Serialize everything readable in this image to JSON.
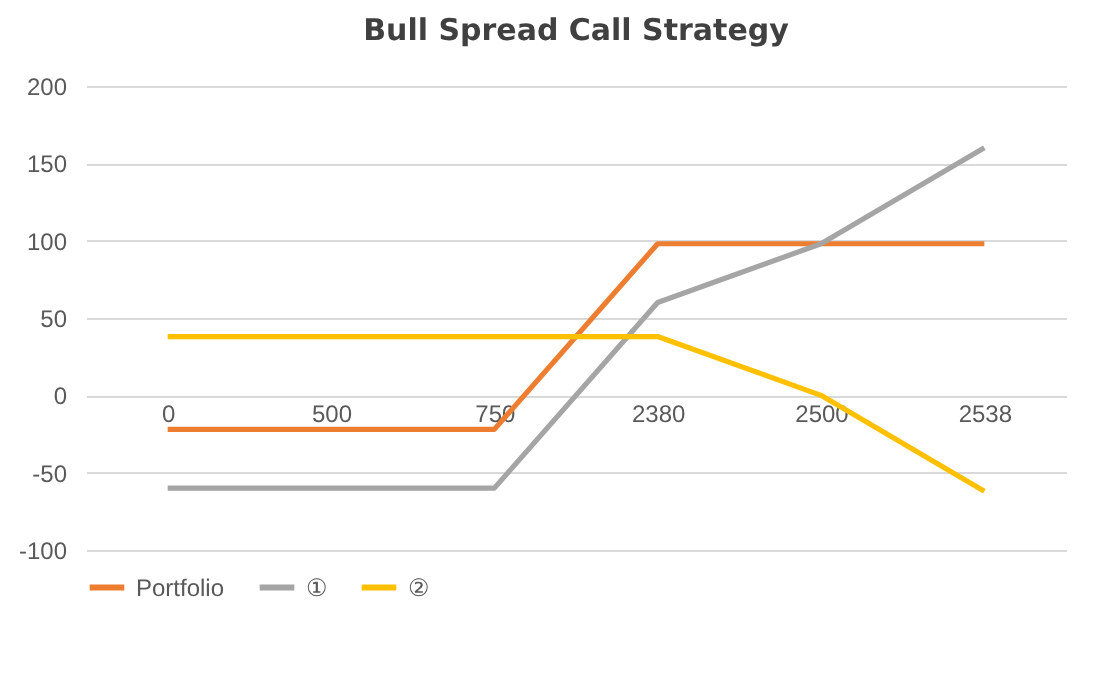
{
  "chart_data": {
    "type": "line",
    "title": "Bull Spread Call Strategy",
    "categories": [
      "0",
      "500",
      "750",
      "2380",
      "2500",
      "2538"
    ],
    "series": [
      {
        "name": "Portfolio",
        "color": "#ed7d31",
        "values": [
          -22,
          -22,
          -22,
          98,
          98,
          98
        ]
      },
      {
        "name": "①",
        "color": "#a5a5a5",
        "values": [
          -60,
          -60,
          -60,
          60,
          98,
          160
        ]
      },
      {
        "name": "②",
        "color": "#ffc000",
        "values": [
          38,
          38,
          38,
          38,
          0,
          -62
        ]
      }
    ],
    "ylim": [
      -100,
      200
    ],
    "yticks": [
      -100,
      -50,
      0,
      50,
      100,
      150,
      200
    ],
    "grid": "y",
    "legend": "bottom",
    "marker": "none",
    "line_style": "solid"
  }
}
